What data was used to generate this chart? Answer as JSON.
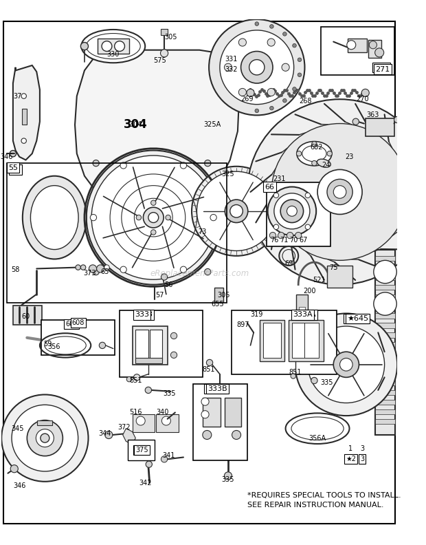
{
  "bg_color": "#ffffff",
  "line_color": "#2a2a2a",
  "text_color": "#000000",
  "note_line1": "*REQUIRES SPECIAL TOOLS TO INSTALL.",
  "note_line2": "SEE REPAIR INSTRUCTION MANUAL.",
  "watermark": "eReplacementParts.com",
  "figw": 6.2,
  "figh": 7.92,
  "dpi": 100
}
